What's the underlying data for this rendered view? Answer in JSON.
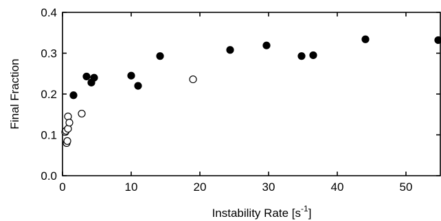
{
  "chart_data": {
    "type": "scatter",
    "title": "",
    "xlabel": "Instability Rate [s",
    "xlabel_sup": "-1",
    "xlabel_end": "]",
    "ylabel": "Final Fraction",
    "xlim": [
      0,
      55
    ],
    "ylim": [
      0.0,
      0.4
    ],
    "xticks": [
      0,
      10,
      20,
      30,
      40,
      50
    ],
    "yticks": [
      0.0,
      0.1,
      0.2,
      0.3,
      0.4
    ],
    "xtick_labels": [
      "0",
      "10",
      "20",
      "30",
      "40",
      "50"
    ],
    "ytick_labels": [
      "0.0",
      "0.1",
      "0.2",
      "0.3",
      "0.4"
    ],
    "grid": false,
    "series": [
      {
        "marker": "filled-circle",
        "color": "#000000",
        "points": [
          {
            "x": 1.6,
            "y": 0.197
          },
          {
            "x": 3.5,
            "y": 0.243
          },
          {
            "x": 4.2,
            "y": 0.228
          },
          {
            "x": 4.6,
            "y": 0.24
          },
          {
            "x": 10.0,
            "y": 0.245
          },
          {
            "x": 11.0,
            "y": 0.22
          },
          {
            "x": 14.2,
            "y": 0.293
          },
          {
            "x": 24.4,
            "y": 0.308
          },
          {
            "x": 29.7,
            "y": 0.319
          },
          {
            "x": 34.8,
            "y": 0.293
          },
          {
            "x": 36.5,
            "y": 0.295
          },
          {
            "x": 44.1,
            "y": 0.334
          },
          {
            "x": 54.7,
            "y": 0.332
          }
        ]
      },
      {
        "marker": "open-circle",
        "color": "#000000",
        "points": [
          {
            "x": 0.4,
            "y": 0.107
          },
          {
            "x": 0.5,
            "y": 0.11
          },
          {
            "x": 0.6,
            "y": 0.08
          },
          {
            "x": 0.7,
            "y": 0.085
          },
          {
            "x": 0.8,
            "y": 0.115
          },
          {
            "x": 0.8,
            "y": 0.145
          },
          {
            "x": 1.0,
            "y": 0.13
          },
          {
            "x": 2.8,
            "y": 0.152
          },
          {
            "x": 19.0,
            "y": 0.236
          }
        ]
      }
    ]
  }
}
